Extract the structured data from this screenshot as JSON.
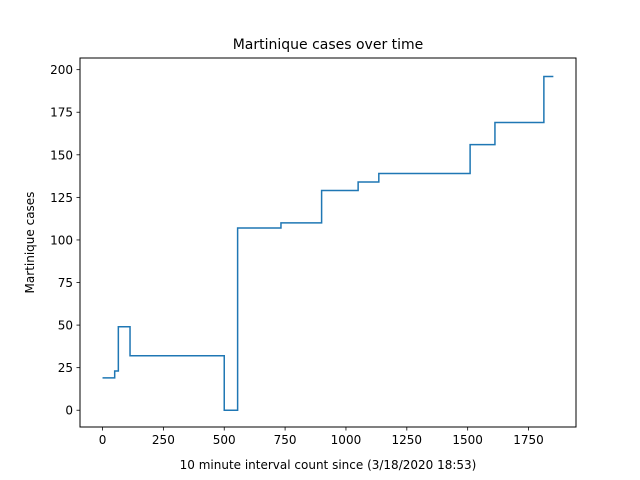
{
  "chart_data": {
    "type": "line",
    "drawstyle": "steps-post",
    "title": "Martinique cases over time",
    "xlabel": "10 minute interval count since (3/18/2020 18:53)",
    "ylabel": "Martinique cases",
    "xlim": [
      -92.5,
      1945
    ],
    "ylim": [
      -9.85,
      206.85
    ],
    "xticks": [
      0,
      250,
      500,
      750,
      1000,
      1250,
      1500,
      1750
    ],
    "yticks": [
      0,
      25,
      50,
      75,
      100,
      125,
      150,
      175,
      200
    ],
    "grid": false,
    "legend": "none",
    "series": [
      {
        "color": "#1f77b4",
        "x": [
          0,
          50,
          65,
          113,
          500,
          555,
          733,
          900,
          1050,
          1135,
          1510,
          1612,
          1813,
          1852
        ],
        "y": [
          19,
          23,
          49,
          32,
          0,
          107,
          110,
          129,
          134,
          139,
          156,
          169,
          196,
          196
        ]
      }
    ]
  }
}
